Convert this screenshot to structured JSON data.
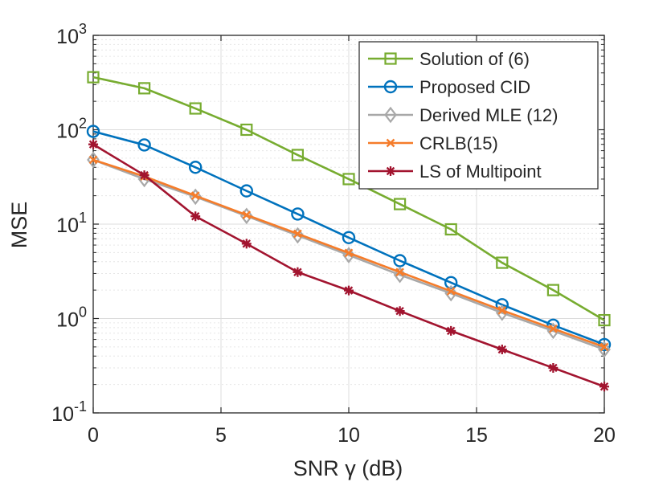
{
  "chart_data": {
    "type": "line",
    "title": "",
    "xlabel": "SNR γ (dB)",
    "ylabel": "MSE",
    "xlim": [
      0,
      20
    ],
    "ylim": [
      0.1,
      1000
    ],
    "yscale": "log",
    "grid": true,
    "x_ticks": [
      {
        "value": 0,
        "label": "0"
      },
      {
        "value": 5,
        "label": "5"
      },
      {
        "value": 10,
        "label": "10"
      },
      {
        "value": 15,
        "label": "15"
      },
      {
        "value": 20,
        "label": "20"
      }
    ],
    "y_ticks": [
      {
        "value": 0.1,
        "base": "10",
        "exp": "-1"
      },
      {
        "value": 1,
        "base": "10",
        "exp": "0"
      },
      {
        "value": 10,
        "base": "10",
        "exp": "1"
      },
      {
        "value": 100,
        "base": "10",
        "exp": "2"
      },
      {
        "value": 1000,
        "base": "10",
        "exp": "3"
      }
    ],
    "legend_position": "top-right",
    "x": [
      0,
      2,
      4,
      6,
      8,
      10,
      12,
      14,
      16,
      18,
      20
    ],
    "series": [
      {
        "name": "Solution of (6)",
        "color": "#77ac30",
        "marker": "square",
        "values": [
          360,
          275,
          168,
          100,
          54,
          30,
          16.3,
          8.8,
          3.9,
          2.0,
          0.96
        ]
      },
      {
        "name": "Proposed CID",
        "color": "#0072bd",
        "marker": "circle",
        "values": [
          96,
          69,
          40,
          22.5,
          12.8,
          7.2,
          4.1,
          2.4,
          1.4,
          0.85,
          0.53
        ]
      },
      {
        "name": "Derived MLE (12)",
        "color": "#a8a8a8",
        "marker": "diamond",
        "values": [
          48,
          30,
          19.5,
          12.2,
          7.6,
          4.7,
          2.9,
          1.85,
          1.15,
          0.74,
          0.47
        ]
      },
      {
        "name": "CRLB(15)",
        "color": "#f57c2a",
        "marker": "x",
        "values": [
          48,
          32,
          20,
          12.5,
          7.9,
          4.95,
          3.1,
          1.95,
          1.22,
          0.78,
          0.5
        ]
      },
      {
        "name": "LS of Multipoint",
        "color": "#a2142f",
        "marker": "star",
        "values": [
          70,
          33,
          12.1,
          6.2,
          3.1,
          1.98,
          1.2,
          0.74,
          0.47,
          0.3,
          0.19
        ]
      }
    ]
  }
}
